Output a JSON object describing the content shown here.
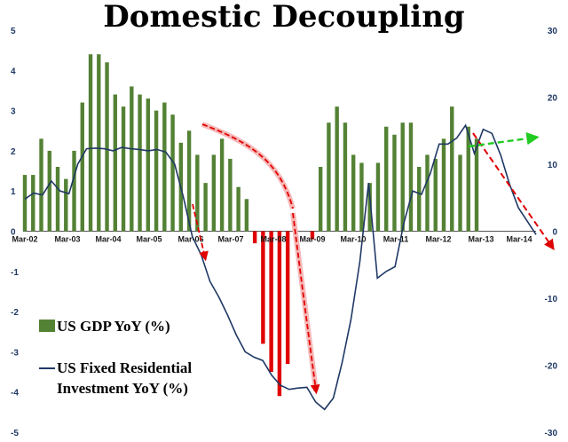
{
  "chart_data": {
    "type": "bar",
    "title": "Domestic Decoupling",
    "x_tick_labels": [
      "Mar-02",
      "Mar-03",
      "Mar-04",
      "Mar-05",
      "Mar-06",
      "Mar-07",
      "Mar-08",
      "Mar-09",
      "Mar-10",
      "Mar-11",
      "Mar-12",
      "Mar-13",
      "Mar-14"
    ],
    "left_axis": {
      "min": -5,
      "max": 5,
      "ticks": [
        "-5",
        "-4",
        "-3",
        "-2",
        "-1",
        "0",
        "1",
        "2",
        "3",
        "4",
        "5"
      ]
    },
    "right_axis": {
      "min": -30,
      "max": 30,
      "ticks": [
        "-30",
        "-20",
        "-10",
        "0",
        "10",
        "20",
        "30"
      ]
    },
    "quarters_start": "2002-Q1",
    "series": [
      {
        "name": "US GDP YoY (%)",
        "axis": "left",
        "color": "#548235",
        "values": [
          1.4,
          1.4,
          2.3,
          2.0,
          1.6,
          1.3,
          2.0,
          3.2,
          4.4,
          4.4,
          4.2,
          3.4,
          3.1,
          3.6,
          3.4,
          3.3,
          3.0,
          3.2,
          2.9,
          2.2,
          2.5,
          1.9,
          1.2,
          1.9,
          2.3,
          1.8,
          1.1,
          0.8,
          -0.3,
          -2.8,
          -3.5,
          -4.1,
          -3.3,
          null,
          null,
          -0.2,
          1.6,
          2.7,
          3.1,
          2.7,
          1.9,
          1.7,
          1.2,
          1.7,
          2.6,
          2.4,
          2.7,
          2.7,
          1.6,
          1.9,
          1.8,
          2.3,
          3.1,
          1.9,
          2.6,
          2.3
        ]
      },
      {
        "name": "US Fixed Residential Investment YoY (%)",
        "axis": "right",
        "color": "#1f3864",
        "values": [
          4.8,
          5.7,
          5.4,
          7.5,
          6.0,
          5.6,
          10.0,
          12.3,
          12.4,
          12.3,
          12.0,
          12.5,
          12.3,
          12.2,
          12.0,
          12.2,
          11.8,
          10.0,
          5.0,
          -0.8,
          -3.5,
          -7.5,
          -9.8,
          -12.5,
          -15.5,
          -18.0,
          -18.8,
          -19.3,
          -21.5,
          -23.0,
          -23.6,
          -23.4,
          -23.3,
          -25.5,
          -26.6,
          -24.9,
          -19.6,
          -13.2,
          -4.6,
          7.2,
          -7.0,
          -6.0,
          -5.3,
          1.2,
          6.0,
          5.5,
          8.6,
          13.0,
          13.0,
          13.9,
          15.8,
          11.6,
          15.2,
          14.6,
          11.3,
          7.0,
          3.5,
          1.5,
          -0.5
        ]
      }
    ],
    "legend": [
      "US GDP YoY (%)",
      "US Fixed Residential Investment YoY (%)"
    ],
    "legend_position": "bottom-left",
    "annotations": "dashed arrows: red (declines) and green (rise)"
  }
}
